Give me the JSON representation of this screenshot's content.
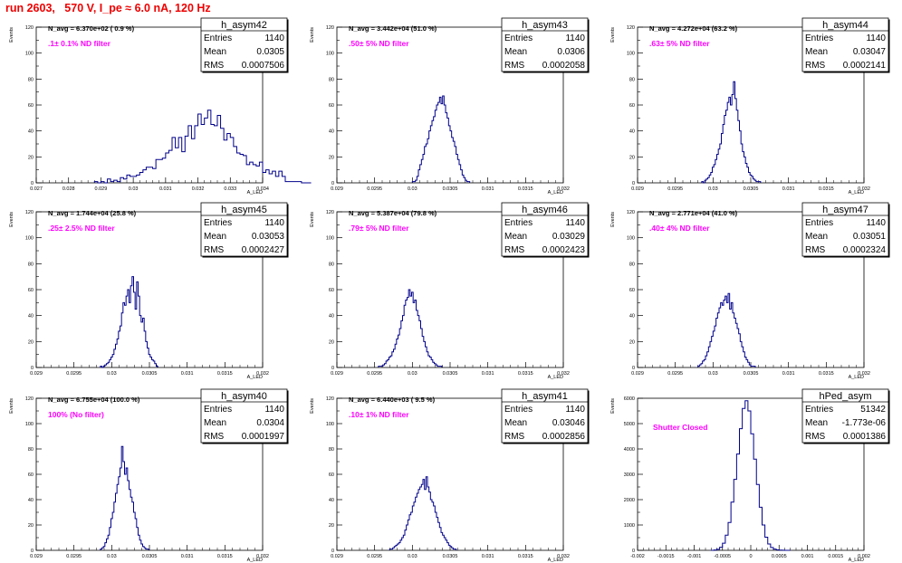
{
  "page_title": "run 2603,   570 V, I_pe ≈ 6.0 nA, 120 Hz",
  "stat_labels": {
    "entries": "Entries",
    "mean": "Mean",
    "rms": "RMS"
  },
  "ylabel": "Events",
  "xlabel": "A_LED",
  "colors": {
    "title": "#ee0000",
    "annotation": "#ff00ff",
    "histogram": "#00008b",
    "axis": "#000000"
  },
  "chart_data": [
    {
      "type": "histogram",
      "name": "h_asym42",
      "entries": "1140",
      "mean": "0.0305",
      "rms": "0.0007506",
      "navg": "N_avg = 6.370e+02 ( 0.9 %)",
      "annotation": ".1± 0.1% ND filter",
      "xlim": [
        0.027,
        0.034
      ],
      "ylim": [
        0,
        120
      ],
      "yticks": [
        0,
        20,
        40,
        60,
        80,
        100,
        120
      ],
      "xticks": [
        "0.027",
        "0.028",
        "0.029",
        "0.03",
        "0.031",
        "0.032",
        "0.033",
        "0.034"
      ],
      "xstart": 0.0288,
      "binwidth": 0.0001,
      "values": [
        1,
        0,
        1,
        0,
        3,
        1,
        2,
        1,
        4,
        3,
        6,
        5,
        5,
        6,
        8,
        10,
        12,
        12,
        11,
        18,
        18,
        19,
        23,
        25,
        35,
        27,
        35,
        24,
        36,
        44,
        34,
        44,
        53,
        45,
        50,
        56,
        45,
        44,
        52,
        42,
        33,
        38,
        35,
        28,
        23,
        22,
        21,
        14,
        16,
        14,
        13,
        16,
        8,
        10,
        7,
        9,
        5,
        9,
        5,
        1,
        1,
        1,
        1,
        1,
        0,
        0,
        0
      ]
    },
    {
      "type": "histogram",
      "name": "h_asym43",
      "entries": "1140",
      "mean": "0.0306",
      "rms": "0.0002058",
      "navg": "N_avg = 3.442e+04 (51.0 %)",
      "annotation": ".50± 5% ND filter",
      "xlim": [
        0.029,
        0.032
      ],
      "ylim": [
        0,
        120
      ],
      "yticks": [
        0,
        20,
        40,
        60,
        80,
        100,
        120
      ],
      "xticks": [
        "0.029",
        "0.0295",
        "0.03",
        "0.0305",
        "0.031",
        "0.0315",
        "0.032"
      ],
      "xstart": 0.03,
      "binwidth": 2e-05,
      "values": [
        1,
        1,
        2,
        5,
        10,
        14,
        18,
        22,
        28,
        30,
        34,
        40,
        44,
        48,
        51,
        56,
        60,
        62,
        66,
        61,
        67,
        60,
        54,
        50,
        44,
        40,
        35,
        32,
        28,
        22,
        18,
        14,
        10,
        6,
        4,
        2,
        1,
        1
      ]
    },
    {
      "type": "histogram",
      "name": "h_asym44",
      "entries": "1140",
      "mean": "0.03047",
      "rms": "0.0002141",
      "navg": "N_avg = 4.272e+04 (63.2 %)",
      "annotation": ".63± 5% ND filter",
      "xlim": [
        0.029,
        0.032
      ],
      "ylim": [
        0,
        120
      ],
      "yticks": [
        0,
        20,
        40,
        60,
        80,
        100,
        120
      ],
      "xticks": [
        "0.029",
        "0.0295",
        "0.03",
        "0.0305",
        "0.031",
        "0.0315",
        "0.032"
      ],
      "xstart": 0.02985,
      "binwidth": 2e-05,
      "values": [
        1,
        0,
        2,
        3,
        4,
        6,
        8,
        12,
        14,
        18,
        22,
        26,
        30,
        38,
        45,
        52,
        56,
        62,
        66,
        60,
        68,
        78,
        65,
        56,
        48,
        40,
        30,
        24,
        20,
        15,
        12,
        8,
        6,
        5,
        3,
        2,
        1,
        1,
        1
      ]
    },
    {
      "type": "histogram",
      "name": "h_asym45",
      "entries": "1140",
      "mean": "0.03053",
      "rms": "0.0002427",
      "navg": "N_avg = 1.744e+04 (25.8 %)",
      "annotation": ".25± 2.5% ND filter",
      "xlim": [
        0.029,
        0.032
      ],
      "ylim": [
        0,
        120
      ],
      "yticks": [
        0,
        20,
        40,
        60,
        80,
        100,
        120
      ],
      "xticks": [
        "0.029",
        "0.0295",
        "0.03",
        "0.0305",
        "0.031",
        "0.0315",
        "0.032"
      ],
      "xstart": 0.02985,
      "binwidth": 2e-05,
      "values": [
        1,
        0,
        1,
        2,
        3,
        4,
        6,
        8,
        10,
        14,
        18,
        22,
        28,
        32,
        42,
        50,
        48,
        55,
        60,
        50,
        63,
        70,
        58,
        45,
        66,
        55,
        40,
        35,
        38,
        28,
        20,
        15,
        10,
        8,
        6,
        5,
        3,
        1
      ]
    },
    {
      "type": "histogram",
      "name": "h_asym46",
      "entries": "1140",
      "mean": "0.03029",
      "rms": "0.0002423",
      "navg": "N_avg = 5.387e+04 (79.8 %)",
      "annotation": ".79± 5% ND filter",
      "xlim": [
        0.029,
        0.032
      ],
      "ylim": [
        0,
        120
      ],
      "yticks": [
        0,
        20,
        40,
        60,
        80,
        100,
        120
      ],
      "xticks": [
        "0.029",
        "0.0295",
        "0.03",
        "0.0305",
        "0.031",
        "0.0315",
        "0.032"
      ],
      "xstart": 0.02955,
      "binwidth": 2e-05,
      "values": [
        1,
        1,
        1,
        2,
        3,
        5,
        6,
        8,
        9,
        12,
        14,
        18,
        22,
        25,
        30,
        36,
        40,
        48,
        52,
        54,
        60,
        55,
        58,
        50,
        52,
        44,
        40,
        36,
        30,
        24,
        20,
        16,
        12,
        9,
        8,
        6,
        4,
        3,
        2,
        1,
        1,
        1
      ]
    },
    {
      "type": "histogram",
      "name": "h_asym47",
      "entries": "1140",
      "mean": "0.03051",
      "rms": "0.0002324",
      "navg": "N_avg = 2.771e+04 (41.0 %)",
      "annotation": ".40± 4% ND filter",
      "xlim": [
        0.029,
        0.032
      ],
      "ylim": [
        0,
        120
      ],
      "yticks": [
        0,
        20,
        40,
        60,
        80,
        100,
        120
      ],
      "xticks": [
        "0.029",
        "0.0295",
        "0.03",
        "0.0305",
        "0.031",
        "0.0315",
        "0.032"
      ],
      "xstart": 0.0298,
      "binwidth": 2e-05,
      "values": [
        1,
        2,
        3,
        5,
        6,
        9,
        12,
        16,
        20,
        24,
        28,
        32,
        38,
        42,
        46,
        50,
        48,
        52,
        55,
        50,
        57,
        45,
        50,
        42,
        38,
        34,
        30,
        26,
        20,
        16,
        12,
        8,
        6,
        4,
        2,
        1,
        1,
        1
      ]
    },
    {
      "type": "histogram",
      "name": "h_asym40",
      "entries": "1140",
      "mean": "0.0304",
      "rms": "0.0001997",
      "navg": "N_avg = 6.755e+04 (100.0 %)",
      "annotation": "100% (No filter)",
      "xlim": [
        0.029,
        0.032
      ],
      "ylim": [
        0,
        120
      ],
      "yticks": [
        0,
        20,
        40,
        60,
        80,
        100,
        120
      ],
      "xticks": [
        "0.029",
        "0.0295",
        "0.03",
        "0.0305",
        "0.031",
        "0.0315",
        "0.032"
      ],
      "xstart": 0.02985,
      "binwidth": 2e-05,
      "values": [
        1,
        2,
        3,
        6,
        9,
        12,
        18,
        25,
        30,
        38,
        45,
        52,
        58,
        65,
        82,
        70,
        60,
        65,
        55,
        48,
        42,
        38,
        30,
        25,
        18,
        12,
        8,
        5,
        3,
        2,
        1,
        1
      ]
    },
    {
      "type": "histogram",
      "name": "h_asym41",
      "entries": "1140",
      "mean": "0.03046",
      "rms": "0.0002856",
      "navg": "N_avg = 6.440e+03 ( 9.5 %)",
      "annotation": ".10± 1% ND filter",
      "xlim": [
        0.029,
        0.032
      ],
      "ylim": [
        0,
        120
      ],
      "yticks": [
        0,
        20,
        40,
        60,
        80,
        100,
        120
      ],
      "xticks": [
        "0.029",
        "0.0295",
        "0.03",
        "0.0305",
        "0.031",
        "0.0315",
        "0.032"
      ],
      "xstart": 0.0297,
      "binwidth": 2e-05,
      "values": [
        1,
        1,
        2,
        3,
        4,
        5,
        6,
        8,
        10,
        12,
        16,
        20,
        24,
        28,
        30,
        35,
        38,
        42,
        45,
        48,
        50,
        52,
        56,
        48,
        58,
        50,
        46,
        40,
        38,
        35,
        30,
        26,
        22,
        18,
        14,
        12,
        10,
        8,
        6,
        4,
        3,
        2,
        1,
        1
      ]
    },
    {
      "type": "histogram",
      "name": "hPed_asym",
      "entries": "51342",
      "mean": "-1.773e-06",
      "rms": "0.0001386",
      "navg": "",
      "annotation": "Shutter Closed",
      "xlim": [
        -0.002,
        0.002
      ],
      "ylim": [
        0,
        6000
      ],
      "yticks": [
        0,
        1000,
        2000,
        3000,
        4000,
        5000,
        6000
      ],
      "xticks": [
        "-0.002",
        "-0.0015",
        "-0.001",
        "-0.0005",
        "0",
        "0.0005",
        "0.001",
        "0.0015",
        "0.002"
      ],
      "xstart": -0.0007,
      "binwidth": 5e-05,
      "values": [
        2,
        15,
        40,
        120,
        280,
        600,
        1100,
        1900,
        2800,
        3800,
        4800,
        5600,
        5900,
        5500,
        4600,
        3600,
        2600,
        1700,
        1000,
        520,
        250,
        110,
        50,
        20,
        8,
        3,
        1,
        0
      ]
    }
  ]
}
